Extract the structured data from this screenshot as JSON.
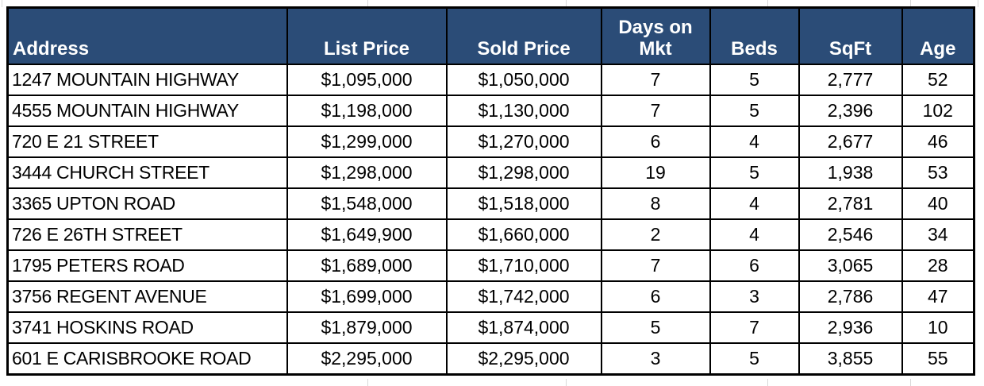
{
  "chart_data": {
    "type": "table",
    "title": "",
    "columns": [
      "Address",
      "List Price",
      "Sold Price",
      "Days on Mkt",
      "Beds",
      "SqFt",
      "Age"
    ],
    "column_keys": [
      "address",
      "list_price",
      "sold_price",
      "days_on_mkt",
      "beds",
      "sqft",
      "age"
    ],
    "rows": [
      [
        "1247 MOUNTAIN HIGHWAY",
        "$1,095,000",
        "$1,050,000",
        "7",
        "5",
        "2,777",
        "52"
      ],
      [
        "4555 MOUNTAIN HIGHWAY",
        "$1,198,000",
        "$1,130,000",
        "7",
        "5",
        "2,396",
        "102"
      ],
      [
        "720 E 21 STREET",
        "$1,299,000",
        "$1,270,000",
        "6",
        "4",
        "2,677",
        "46"
      ],
      [
        "3444 CHURCH STREET",
        "$1,298,000",
        "$1,298,000",
        "19",
        "5",
        "1,938",
        "53"
      ],
      [
        "3365 UPTON ROAD",
        "$1,548,000",
        "$1,518,000",
        "8",
        "4",
        "2,781",
        "40"
      ],
      [
        "726 E 26TH STREET",
        "$1,649,900",
        "$1,660,000",
        "2",
        "4",
        "2,546",
        "34"
      ],
      [
        "1795 PETERS ROAD",
        "$1,689,000",
        "$1,710,000",
        "7",
        "6",
        "3,065",
        "28"
      ],
      [
        "3756 REGENT AVENUE",
        "$1,699,000",
        "$1,742,000",
        "6",
        "3",
        "2,786",
        "47"
      ],
      [
        "3741 HOSKINS ROAD",
        "$1,879,000",
        "$1,874,000",
        "5",
        "7",
        "2,936",
        "10"
      ],
      [
        "601 E CARISBROOKE ROAD",
        "$2,295,000",
        "$2,295,000",
        "3",
        "5",
        "3,855",
        "55"
      ]
    ],
    "layout": {
      "grid": "on",
      "header_position": "top"
    },
    "colors": {
      "header_bg": "#2b4c77",
      "header_text": "#ffffff",
      "border": "#000000",
      "row_bg": "#ffffff",
      "body_text": "#000000",
      "margin_gridline": "#d9d9d9"
    }
  }
}
